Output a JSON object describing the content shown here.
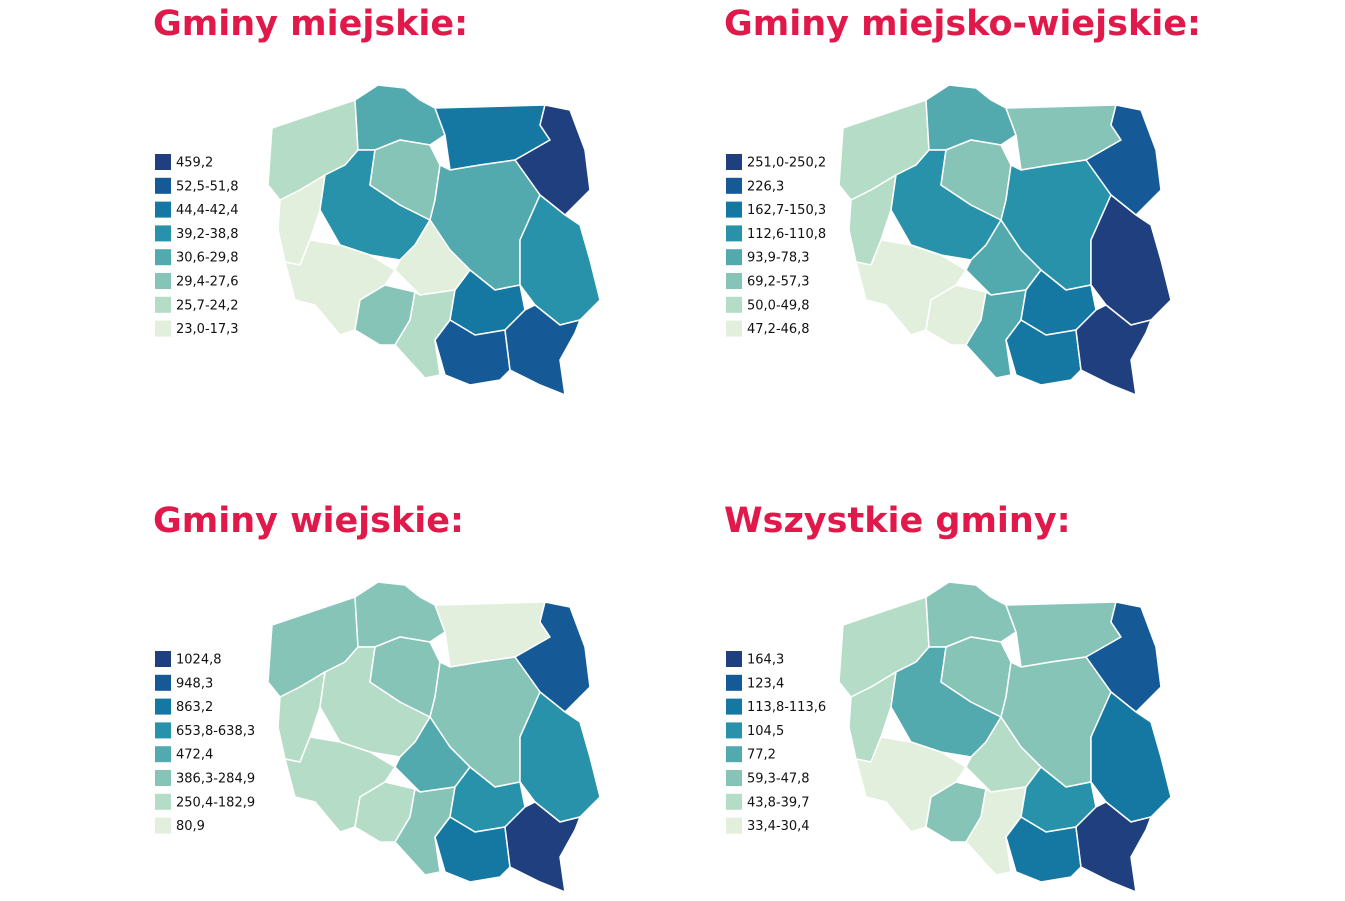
{
  "panels": [
    {
      "title": "Gminy miejskie:",
      "legend": [
        {
          "label": "459,2",
          "color": "#1f3f7f"
        },
        {
          "label": "52,5-51,8",
          "color": "#155a96"
        },
        {
          "label": "44,4-42,4",
          "color": "#1478a3"
        },
        {
          "label": "39,2-38,8",
          "color": "#2892aa"
        },
        {
          "label": "30,6-29,8",
          "color": "#52a9ae"
        },
        {
          "label": "29,4-27,6",
          "color": "#86c4b8"
        },
        {
          "label": "25,7-24,2",
          "color": "#b5dcc6"
        },
        {
          "label": "23,0-17,3",
          "color": "#e2efdc"
        }
      ],
      "region_colors": [
        "#b5dcc6",
        "#52a9ae",
        "#1478a3",
        "#1f3f7f",
        "#e2efdc",
        "#2892aa",
        "#86c4b8",
        "#52a9ae",
        "#2892aa",
        "#e2efdc",
        "#e2efdc",
        "#86c4b8",
        "#b5dcc6",
        "#1478a3",
        "#155a96",
        "#155a96"
      ]
    },
    {
      "title": "Gminy miejsko-wiejskie:",
      "legend": [
        {
          "label": "251,0-250,2",
          "color": "#1f3f7f"
        },
        {
          "label": "226,3",
          "color": "#155a96"
        },
        {
          "label": "162,7-150,3",
          "color": "#1478a3"
        },
        {
          "label": "112,6-110,8",
          "color": "#2892aa"
        },
        {
          "label": "93,9-78,3",
          "color": "#52a9ae"
        },
        {
          "label": "69,2-57,3",
          "color": "#86c4b8"
        },
        {
          "label": "50,0-49,8",
          "color": "#b5dcc6"
        },
        {
          "label": "47,2-46,8",
          "color": "#e2efdc"
        }
      ],
      "region_colors": [
        "#b5dcc6",
        "#52a9ae",
        "#86c4b8",
        "#155a96",
        "#b5dcc6",
        "#2892aa",
        "#86c4b8",
        "#2892aa",
        "#1f3f7f",
        "#e2efdc",
        "#52a9ae",
        "#e2efdc",
        "#52a9ae",
        "#1478a3",
        "#1478a3",
        "#1f3f7f"
      ]
    },
    {
      "title": "Gminy wiejskie:",
      "legend": [
        {
          "label": "1024,8",
          "color": "#1f3f7f"
        },
        {
          "label": "948,3",
          "color": "#155a96"
        },
        {
          "label": "863,2",
          "color": "#1478a3"
        },
        {
          "label": "653,8-638,3",
          "color": "#2892aa"
        },
        {
          "label": "472,4",
          "color": "#52a9ae"
        },
        {
          "label": "386,3-284,9",
          "color": "#86c4b8"
        },
        {
          "label": "250,4-182,9",
          "color": "#b5dcc6"
        },
        {
          "label": "80,9",
          "color": "#e2efdc"
        }
      ],
      "region_colors": [
        "#86c4b8",
        "#86c4b8",
        "#e2efdc",
        "#155a96",
        "#b5dcc6",
        "#b5dcc6",
        "#86c4b8",
        "#86c4b8",
        "#2892aa",
        "#b5dcc6",
        "#52a9ae",
        "#b5dcc6",
        "#86c4b8",
        "#2892aa",
        "#1478a3",
        "#1f3f7f"
      ]
    },
    {
      "title": "Wszystkie gminy:",
      "legend": [
        {
          "label": "164,3",
          "color": "#1f3f7f"
        },
        {
          "label": "123,4",
          "color": "#155a96"
        },
        {
          "label": "113,8-113,6",
          "color": "#1478a3"
        },
        {
          "label": "104,5",
          "color": "#2892aa"
        },
        {
          "label": "77,2",
          "color": "#52a9ae"
        },
        {
          "label": "59,3-47,8",
          "color": "#86c4b8"
        },
        {
          "label": "43,8-39,7",
          "color": "#b5dcc6"
        },
        {
          "label": "33,4-30,4",
          "color": "#e2efdc"
        }
      ],
      "region_colors": [
        "#b5dcc6",
        "#86c4b8",
        "#86c4b8",
        "#155a96",
        "#b5dcc6",
        "#52a9ae",
        "#86c4b8",
        "#86c4b8",
        "#1478a3",
        "#e2efdc",
        "#b5dcc6",
        "#86c4b8",
        "#e2efdc",
        "#2892aa",
        "#1478a3",
        "#1f3f7f"
      ]
    }
  ]
}
